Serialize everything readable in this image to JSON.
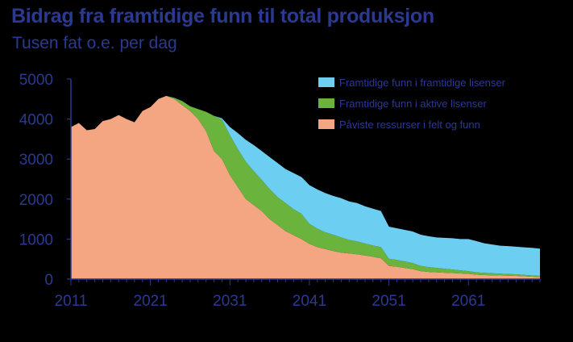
{
  "title": "Bidrag fra framtidige funn til total produksjon",
  "subtitle": "Tusen fat o.e. per dag",
  "chart_data": {
    "type": "area",
    "stacked": true,
    "title": "Bidrag fra framtidige funn til total produksjon",
    "subtitle": "Tusen fat o.e. per dag",
    "xlabel": "",
    "ylabel": "",
    "xlim": [
      2011,
      2070
    ],
    "ylim": [
      0,
      5000
    ],
    "x_ticks": [
      2011,
      2021,
      2031,
      2041,
      2051,
      2061
    ],
    "y_ticks": [
      0,
      1000,
      2000,
      3000,
      4000,
      5000
    ],
    "grid": false,
    "legend_position": "top-right",
    "x": [
      2011,
      2012,
      2013,
      2014,
      2015,
      2016,
      2017,
      2018,
      2019,
      2020,
      2021,
      2022,
      2023,
      2024,
      2025,
      2026,
      2027,
      2028,
      2029,
      2030,
      2031,
      2032,
      2033,
      2034,
      2035,
      2036,
      2037,
      2038,
      2039,
      2040,
      2041,
      2042,
      2043,
      2044,
      2045,
      2046,
      2047,
      2048,
      2049,
      2050,
      2051,
      2052,
      2053,
      2054,
      2055,
      2056,
      2057,
      2058,
      2059,
      2060,
      2061,
      2062,
      2063,
      2064,
      2065,
      2066,
      2067,
      2068,
      2069,
      2070
    ],
    "series": [
      {
        "name": "Påviste ressurser i felt og funn",
        "color": "#f4a582",
        "values": [
          3800,
          3900,
          3720,
          3750,
          3950,
          4000,
          4100,
          4000,
          3920,
          4200,
          4300,
          4500,
          4580,
          4500,
          4350,
          4200,
          4000,
          3700,
          3200,
          3000,
          2600,
          2300,
          2000,
          1850,
          1700,
          1500,
          1350,
          1200,
          1100,
          1000,
          880,
          800,
          750,
          700,
          660,
          640,
          620,
          590,
          560,
          520,
          330,
          310,
          280,
          250,
          200,
          180,
          170,
          160,
          150,
          140,
          130,
          110,
          100,
          95,
          90,
          85,
          80,
          70,
          60,
          50
        ]
      },
      {
        "name": "Framtidige funn i aktive lisenser",
        "color": "#6ab43e",
        "values": [
          0,
          0,
          0,
          0,
          0,
          0,
          0,
          0,
          0,
          0,
          0,
          0,
          0,
          30,
          100,
          120,
          250,
          480,
          880,
          990,
          1000,
          950,
          930,
          850,
          780,
          750,
          700,
          700,
          650,
          630,
          500,
          460,
          420,
          410,
          380,
          340,
          320,
          300,
          280,
          280,
          180,
          170,
          160,
          150,
          130,
          120,
          110,
          100,
          90,
          80,
          70,
          60,
          55,
          50,
          45,
          40,
          40,
          35,
          30,
          30
        ]
      },
      {
        "name": "Framtidige funn i framtidige lisenser",
        "color": "#6ccef0",
        "values": [
          0,
          0,
          0,
          0,
          0,
          0,
          0,
          0,
          0,
          0,
          0,
          0,
          0,
          0,
          0,
          0,
          0,
          0,
          0,
          30,
          200,
          400,
          550,
          650,
          720,
          800,
          850,
          850,
          900,
          920,
          970,
          980,
          980,
          970,
          980,
          960,
          960,
          930,
          920,
          900,
          800,
          790,
          790,
          790,
          780,
          770,
          760,
          770,
          780,
          780,
          800,
          780,
          740,
          720,
          700,
          700,
          690,
          690,
          690,
          680
        ]
      }
    ]
  }
}
